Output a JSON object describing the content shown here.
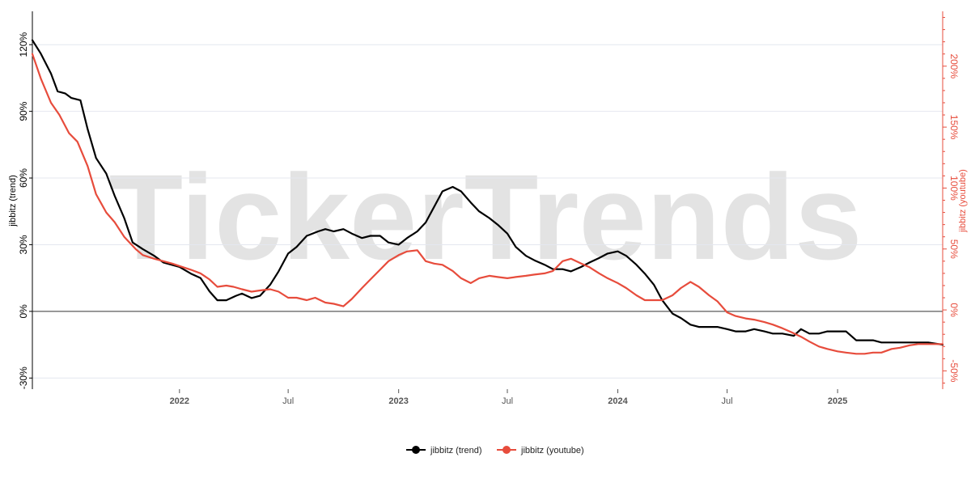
{
  "watermark": "TickerTrends",
  "colors": {
    "trend": "#000000",
    "youtube": "#e74c3c",
    "grid": "#e4e7ef",
    "zero_line": "#333333"
  },
  "chart_data": {
    "type": "line",
    "legend_position": "bottom-center",
    "grid": true,
    "x_axis": {
      "range": [
        "2021-05-01",
        "2025-06-25"
      ],
      "ticks": [
        {
          "date": "2022-01-01",
          "label": "2022",
          "major": true
        },
        {
          "date": "2022-07-01",
          "label": "Jul",
          "major": false
        },
        {
          "date": "2023-01-01",
          "label": "2023",
          "major": true
        },
        {
          "date": "2023-07-01",
          "label": "Jul",
          "major": false
        },
        {
          "date": "2024-01-01",
          "label": "2024",
          "major": true
        },
        {
          "date": "2024-07-01",
          "label": "Jul",
          "major": false
        },
        {
          "date": "2025-01-01",
          "label": "2025",
          "major": true
        }
      ]
    },
    "y_left": {
      "label": "jibbitz  (trend)",
      "range": [
        -35,
        135
      ],
      "unit": "%",
      "ticks": [
        {
          "value": -30,
          "label": "-30%"
        },
        {
          "value": 0,
          "label": "0%"
        },
        {
          "value": 30,
          "label": "30%"
        },
        {
          "value": 60,
          "label": "60%"
        },
        {
          "value": 90,
          "label": "90%"
        },
        {
          "value": 120,
          "label": "120%"
        }
      ]
    },
    "y_right": {
      "label": "jibbitz  (youtube)",
      "range": [
        -65,
        245
      ],
      "unit": "%",
      "ticks": [
        {
          "value": -50,
          "label": "-50%"
        },
        {
          "value": 0,
          "label": "0%"
        },
        {
          "value": 50,
          "label": "50%"
        },
        {
          "value": 100,
          "label": "100%"
        },
        {
          "value": 150,
          "label": "150%"
        },
        {
          "value": 200,
          "label": "200%"
        }
      ]
    },
    "series": [
      {
        "name": "jibbitz  (trend)",
        "axis": "left",
        "color": "#000000",
        "points": [
          [
            "2021-05-01",
            122
          ],
          [
            "2021-05-15",
            116
          ],
          [
            "2021-06-01",
            107
          ],
          [
            "2021-06-12",
            99
          ],
          [
            "2021-06-25",
            98
          ],
          [
            "2021-07-05",
            96
          ],
          [
            "2021-07-20",
            95
          ],
          [
            "2021-08-01",
            82
          ],
          [
            "2021-08-15",
            69
          ],
          [
            "2021-09-01",
            62
          ],
          [
            "2021-09-15",
            52
          ],
          [
            "2021-10-01",
            42
          ],
          [
            "2021-10-15",
            31
          ],
          [
            "2021-11-01",
            28
          ],
          [
            "2021-11-20",
            25
          ],
          [
            "2021-12-05",
            22
          ],
          [
            "2022-01-01",
            20
          ],
          [
            "2022-01-20",
            17
          ],
          [
            "2022-02-05",
            15
          ],
          [
            "2022-02-20",
            9
          ],
          [
            "2022-03-05",
            5
          ],
          [
            "2022-03-20",
            5
          ],
          [
            "2022-04-05",
            7
          ],
          [
            "2022-04-15",
            8
          ],
          [
            "2022-05-01",
            6
          ],
          [
            "2022-05-15",
            7
          ],
          [
            "2022-06-01",
            12
          ],
          [
            "2022-06-15",
            18
          ],
          [
            "2022-07-01",
            26
          ],
          [
            "2022-07-15",
            29
          ],
          [
            "2022-08-01",
            34
          ],
          [
            "2022-08-20",
            36
          ],
          [
            "2022-09-01",
            37
          ],
          [
            "2022-09-15",
            36
          ],
          [
            "2022-10-01",
            37
          ],
          [
            "2022-10-15",
            35
          ],
          [
            "2022-11-01",
            33
          ],
          [
            "2022-11-15",
            34
          ],
          [
            "2022-12-01",
            34
          ],
          [
            "2022-12-15",
            31
          ],
          [
            "2023-01-01",
            30
          ],
          [
            "2023-01-15",
            33
          ],
          [
            "2023-02-01",
            36
          ],
          [
            "2023-02-15",
            40
          ],
          [
            "2023-03-01",
            47
          ],
          [
            "2023-03-15",
            54
          ],
          [
            "2023-04-01",
            56
          ],
          [
            "2023-04-15",
            54
          ],
          [
            "2023-05-01",
            49
          ],
          [
            "2023-05-15",
            45
          ],
          [
            "2023-06-01",
            42
          ],
          [
            "2023-06-15",
            39
          ],
          [
            "2023-07-01",
            35
          ],
          [
            "2023-07-15",
            29
          ],
          [
            "2023-08-01",
            25
          ],
          [
            "2023-08-15",
            23
          ],
          [
            "2023-09-01",
            21
          ],
          [
            "2023-09-15",
            19
          ],
          [
            "2023-10-01",
            19
          ],
          [
            "2023-10-15",
            18
          ],
          [
            "2023-11-01",
            20
          ],
          [
            "2023-11-15",
            22
          ],
          [
            "2023-12-01",
            24
          ],
          [
            "2023-12-15",
            26
          ],
          [
            "2024-01-01",
            27
          ],
          [
            "2024-01-15",
            25
          ],
          [
            "2024-02-01",
            21
          ],
          [
            "2024-02-15",
            17
          ],
          [
            "2024-03-01",
            12
          ],
          [
            "2024-03-15",
            5
          ],
          [
            "2024-04-01",
            -1
          ],
          [
            "2024-04-15",
            -3
          ],
          [
            "2024-05-01",
            -6
          ],
          [
            "2024-05-15",
            -7
          ],
          [
            "2024-06-01",
            -7
          ],
          [
            "2024-06-15",
            -7
          ],
          [
            "2024-07-01",
            -8
          ],
          [
            "2024-07-15",
            -9
          ],
          [
            "2024-08-01",
            -9
          ],
          [
            "2024-08-15",
            -8
          ],
          [
            "2024-09-01",
            -9
          ],
          [
            "2024-09-15",
            -10
          ],
          [
            "2024-10-01",
            -10
          ],
          [
            "2024-10-20",
            -11
          ],
          [
            "2024-11-01",
            -8
          ],
          [
            "2024-11-15",
            -10
          ],
          [
            "2024-12-01",
            -10
          ],
          [
            "2024-12-15",
            -9
          ],
          [
            "2025-01-01",
            -9
          ],
          [
            "2025-01-15",
            -9
          ],
          [
            "2025-02-01",
            -13
          ],
          [
            "2025-02-15",
            -13
          ],
          [
            "2025-03-01",
            -13
          ],
          [
            "2025-03-15",
            -14
          ],
          [
            "2025-04-01",
            -14
          ],
          [
            "2025-04-15",
            -14
          ],
          [
            "2025-05-01",
            -14
          ],
          [
            "2025-05-15",
            -14
          ],
          [
            "2025-06-01",
            -14
          ],
          [
            "2025-06-25",
            -15
          ]
        ]
      },
      {
        "name": "jibbitz  (youtube)",
        "axis": "right",
        "color": "#e74c3c",
        "points": [
          [
            "2021-05-01",
            210
          ],
          [
            "2021-05-15",
            190
          ],
          [
            "2021-06-01",
            170
          ],
          [
            "2021-06-15",
            160
          ],
          [
            "2021-07-01",
            145
          ],
          [
            "2021-07-15",
            138
          ],
          [
            "2021-08-01",
            118
          ],
          [
            "2021-08-15",
            95
          ],
          [
            "2021-09-01",
            80
          ],
          [
            "2021-09-15",
            72
          ],
          [
            "2021-10-01",
            60
          ],
          [
            "2021-10-20",
            50
          ],
          [
            "2021-11-01",
            45
          ],
          [
            "2021-11-20",
            42
          ],
          [
            "2021-12-05",
            40
          ],
          [
            "2021-12-20",
            38
          ],
          [
            "2022-01-01",
            36
          ],
          [
            "2022-01-20",
            33
          ],
          [
            "2022-02-05",
            30
          ],
          [
            "2022-02-20",
            25
          ],
          [
            "2022-03-05",
            19
          ],
          [
            "2022-03-20",
            20
          ],
          [
            "2022-04-01",
            19
          ],
          [
            "2022-04-15",
            17
          ],
          [
            "2022-05-01",
            15
          ],
          [
            "2022-05-15",
            16
          ],
          [
            "2022-06-01",
            17
          ],
          [
            "2022-06-15",
            15
          ],
          [
            "2022-07-01",
            10
          ],
          [
            "2022-07-15",
            10
          ],
          [
            "2022-08-01",
            8
          ],
          [
            "2022-08-15",
            10
          ],
          [
            "2022-09-01",
            6
          ],
          [
            "2022-09-15",
            5
          ],
          [
            "2022-10-01",
            3
          ],
          [
            "2022-10-15",
            9
          ],
          [
            "2022-11-01",
            18
          ],
          [
            "2022-11-15",
            25
          ],
          [
            "2022-12-01",
            33
          ],
          [
            "2022-12-15",
            40
          ],
          [
            "2023-01-01",
            45
          ],
          [
            "2023-01-15",
            48
          ],
          [
            "2023-02-01",
            49
          ],
          [
            "2023-02-15",
            40
          ],
          [
            "2023-03-01",
            38
          ],
          [
            "2023-03-15",
            37
          ],
          [
            "2023-04-01",
            32
          ],
          [
            "2023-04-15",
            26
          ],
          [
            "2023-05-01",
            22
          ],
          [
            "2023-05-15",
            26
          ],
          [
            "2023-06-01",
            28
          ],
          [
            "2023-06-15",
            27
          ],
          [
            "2023-07-01",
            26
          ],
          [
            "2023-07-15",
            27
          ],
          [
            "2023-08-01",
            28
          ],
          [
            "2023-08-15",
            29
          ],
          [
            "2023-09-01",
            30
          ],
          [
            "2023-09-15",
            32
          ],
          [
            "2023-10-01",
            40
          ],
          [
            "2023-10-15",
            42
          ],
          [
            "2023-11-01",
            38
          ],
          [
            "2023-11-15",
            35
          ],
          [
            "2023-12-01",
            30
          ],
          [
            "2023-12-15",
            26
          ],
          [
            "2024-01-01",
            22
          ],
          [
            "2024-01-15",
            18
          ],
          [
            "2024-02-01",
            12
          ],
          [
            "2024-02-15",
            8
          ],
          [
            "2024-03-01",
            8
          ],
          [
            "2024-03-15",
            8
          ],
          [
            "2024-04-01",
            12
          ],
          [
            "2024-04-15",
            18
          ],
          [
            "2024-05-01",
            23
          ],
          [
            "2024-05-15",
            19
          ],
          [
            "2024-06-01",
            12
          ],
          [
            "2024-06-15",
            7
          ],
          [
            "2024-07-01",
            -2
          ],
          [
            "2024-07-15",
            -5
          ],
          [
            "2024-08-01",
            -7
          ],
          [
            "2024-08-15",
            -8
          ],
          [
            "2024-09-01",
            -10
          ],
          [
            "2024-09-15",
            -12
          ],
          [
            "2024-10-01",
            -15
          ],
          [
            "2024-10-15",
            -18
          ],
          [
            "2024-11-01",
            -22
          ],
          [
            "2024-11-15",
            -26
          ],
          [
            "2024-12-01",
            -30
          ],
          [
            "2024-12-15",
            -32
          ],
          [
            "2025-01-01",
            -34
          ],
          [
            "2025-01-15",
            -35
          ],
          [
            "2025-02-01",
            -36
          ],
          [
            "2025-02-15",
            -36
          ],
          [
            "2025-03-01",
            -35
          ],
          [
            "2025-03-15",
            -35
          ],
          [
            "2025-04-01",
            -32
          ],
          [
            "2025-04-15",
            -31
          ],
          [
            "2025-05-01",
            -29
          ],
          [
            "2025-05-15",
            -28
          ],
          [
            "2025-06-01",
            -28
          ],
          [
            "2025-06-25",
            -28
          ]
        ]
      }
    ]
  },
  "legend": [
    {
      "label": "jibbitz  (trend)",
      "color": "#000000"
    },
    {
      "label": "jibbitz  (youtube)",
      "color": "#e74c3c"
    }
  ]
}
